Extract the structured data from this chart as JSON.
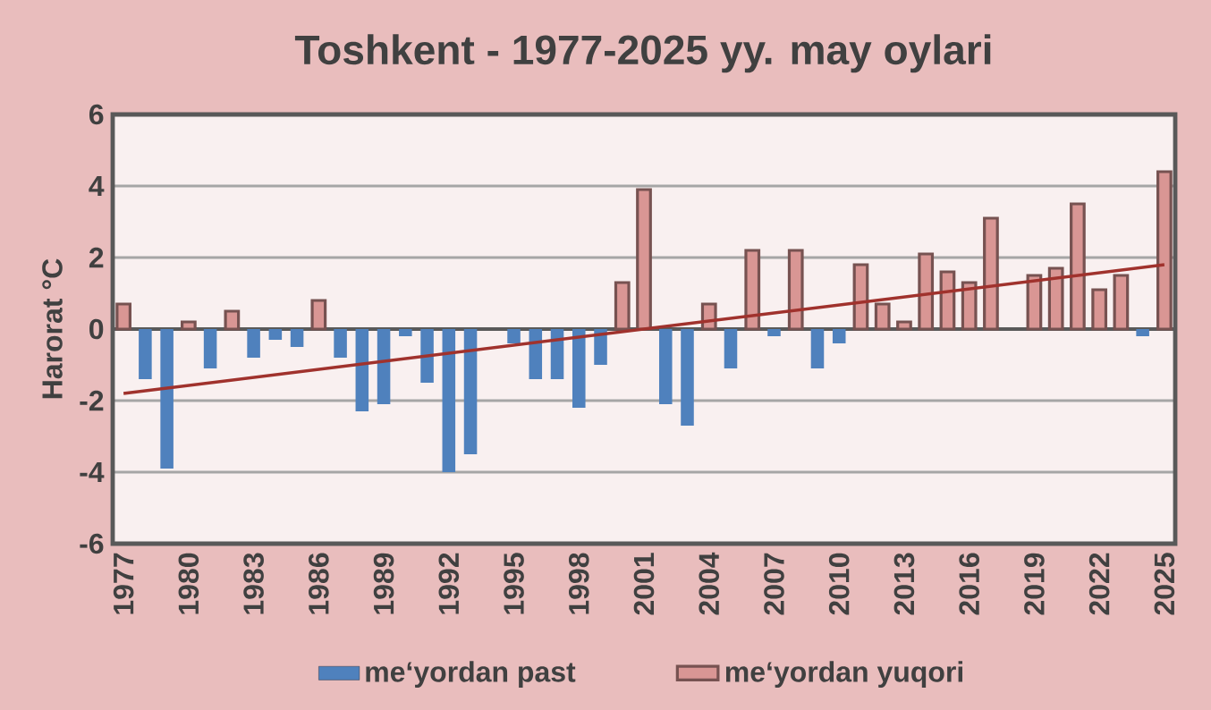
{
  "chart_data": {
    "type": "bar",
    "title": "Toshkent - 1977-2025 yy. may oylari",
    "ylabel": "Harorat  °C",
    "x": [
      1977,
      1978,
      1979,
      1980,
      1981,
      1982,
      1983,
      1984,
      1985,
      1986,
      1987,
      1988,
      1989,
      1990,
      1991,
      1992,
      1993,
      1994,
      1995,
      1996,
      1997,
      1998,
      1999,
      2000,
      2001,
      2002,
      2003,
      2004,
      2005,
      2006,
      2007,
      2008,
      2009,
      2010,
      2011,
      2012,
      2013,
      2014,
      2015,
      2016,
      2017,
      2018,
      2019,
      2020,
      2021,
      2022,
      2023,
      2024,
      2025
    ],
    "series": [
      {
        "name": "me‘yordan past",
        "color": "#4f81bd",
        "values": [
          null,
          -1.4,
          -3.9,
          null,
          -1.1,
          null,
          -0.8,
          -0.3,
          -0.5,
          null,
          -0.8,
          -2.3,
          -2.1,
          -0.2,
          -1.5,
          -4.0,
          -3.5,
          null,
          -0.4,
          -1.4,
          -1.4,
          -2.2,
          -1.0,
          null,
          null,
          -2.1,
          -2.7,
          null,
          -1.1,
          null,
          -0.2,
          null,
          -1.1,
          -0.4,
          null,
          null,
          null,
          null,
          null,
          null,
          null,
          null,
          null,
          null,
          null,
          null,
          null,
          -0.2,
          null
        ]
      },
      {
        "name": "me‘yordan yuqori",
        "color": "#d99694",
        "values": [
          0.7,
          null,
          null,
          0.2,
          null,
          0.5,
          null,
          null,
          null,
          0.8,
          null,
          null,
          null,
          null,
          null,
          null,
          null,
          null,
          null,
          null,
          null,
          null,
          null,
          1.3,
          3.9,
          null,
          null,
          0.7,
          null,
          2.2,
          null,
          2.2,
          null,
          null,
          1.8,
          0.7,
          0.2,
          2.1,
          1.6,
          1.3,
          3.1,
          null,
          1.5,
          1.7,
          3.5,
          1.1,
          1.5,
          null,
          4.4
        ]
      },
      {
        "type": "line",
        "color": "#a0322d",
        "x": [
          1977,
          2025
        ],
        "values": [
          -1.8,
          1.8
        ]
      }
    ],
    "xlim": [
      1976.5,
      2025.5
    ],
    "xticks": [
      1977,
      1980,
      1983,
      1986,
      1989,
      1992,
      1995,
      1998,
      2001,
      2004,
      2007,
      2010,
      2013,
      2016,
      2019,
      2022,
      2025
    ],
    "ylim": [
      -6,
      6
    ],
    "yticks": [
      -6,
      -4,
      -2,
      0,
      2,
      4,
      6
    ],
    "grid": "y",
    "legend": "bottom"
  }
}
